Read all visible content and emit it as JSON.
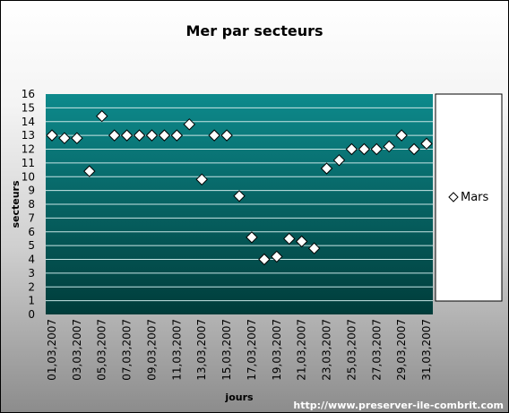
{
  "chart_data": {
    "type": "scatter",
    "title": "Mer par secteurs",
    "xlabel": "jours",
    "ylabel": "secteurs",
    "ylim": [
      0,
      16
    ],
    "yticks": [
      "0",
      "1",
      "2",
      "3",
      "4",
      "5",
      "6",
      "7",
      "8",
      "9",
      "10",
      "11",
      "12",
      "13",
      "14",
      "15",
      "16"
    ],
    "x": [
      "01,03,2007",
      "02,03,2007",
      "03,03,2007",
      "04,03,2007",
      "05,03,2007",
      "06,03,2007",
      "07,03,2007",
      "08,03,2007",
      "09,03,2007",
      "10,03,2007",
      "11,03,2007",
      "12,03,2007",
      "13,03,2007",
      "14,03,2007",
      "15,03,2007",
      "16,03,2007",
      "17,03,2007",
      "18,03,2007",
      "19,03,2007",
      "20,03,2007",
      "21,03,2007",
      "22,03,2007",
      "23,03,2007",
      "24,03,2007",
      "25,03,2007",
      "26,03,2007",
      "27,03,2007",
      "28,03,2007",
      "29,03,2007",
      "30,03,2007",
      "31,03,2007"
    ],
    "xtick_labels": [
      "01,03,2007",
      "03,03,2007",
      "05,03,2007",
      "07,03,2007",
      "09,03,2007",
      "11,03,2007",
      "13,03,2007",
      "15,03,2007",
      "17,03,2007",
      "19,03,2007",
      "21,03,2007",
      "23,03,2007",
      "25,03,2007",
      "27,03,2007",
      "29,03,2007",
      "31,03,2007"
    ],
    "series": [
      {
        "name": "Mars",
        "marker": "diamond",
        "values": [
          13.0,
          12.8,
          12.8,
          10.4,
          14.4,
          13.0,
          13.0,
          13.0,
          13.0,
          13.0,
          13.0,
          13.8,
          9.8,
          13.0,
          13.0,
          8.6,
          5.6,
          4.0,
          4.2,
          5.5,
          5.3,
          4.8,
          10.6,
          11.2,
          12.0,
          12.0,
          12.0,
          12.2,
          13.0,
          12.0,
          12.4
        ]
      }
    ],
    "grid": true,
    "legend": "right",
    "colors": {
      "plot_top": "#0d8a8c",
      "plot_bottom": "#003c3a",
      "marker_fill": "#ffffff",
      "marker_stroke": "#000000"
    }
  },
  "footer": {
    "url": "http://www.preserver-ile-combrit.com"
  }
}
